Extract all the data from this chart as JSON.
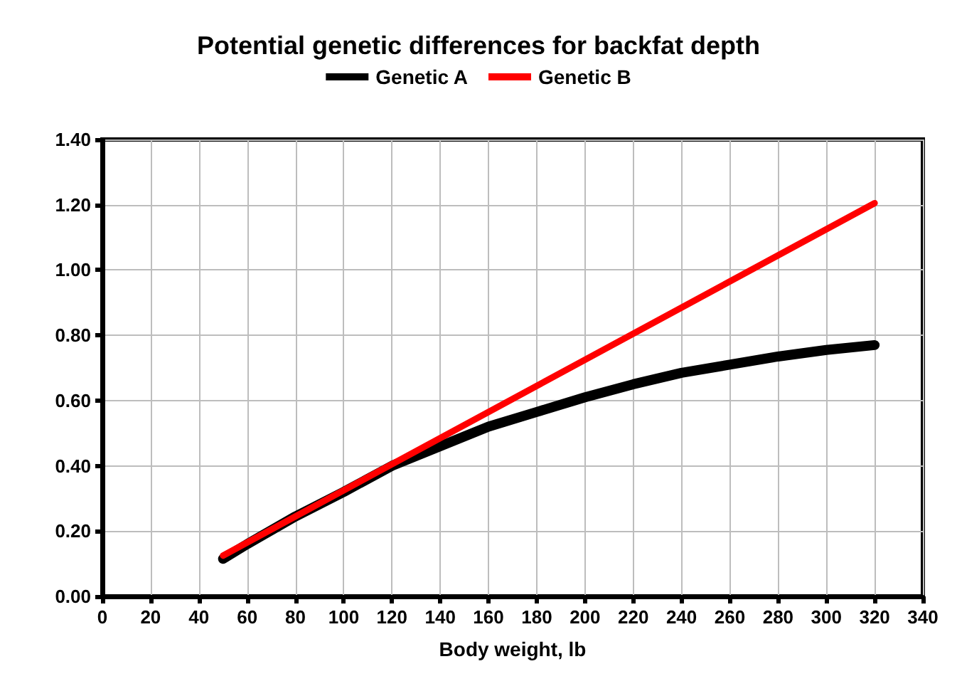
{
  "chart_data": {
    "type": "line",
    "title": "Potential genetic differences for backfat depth",
    "xlabel": "Body weight, lb",
    "series": [
      {
        "name": "Genetic A",
        "color": "#000000",
        "x": [
          50,
          60,
          80,
          100,
          120,
          140,
          160,
          180,
          200,
          220,
          240,
          260,
          280,
          300,
          320
        ],
        "values": [
          0.115,
          0.16,
          0.245,
          0.32,
          0.4,
          0.46,
          0.52,
          0.565,
          0.61,
          0.65,
          0.685,
          0.71,
          0.735,
          0.755,
          0.77
        ]
      },
      {
        "name": "Genetic B",
        "color": "#ff0000",
        "x": [
          50,
          320
        ],
        "values": [
          0.125,
          1.205
        ]
      }
    ],
    "xlim": [
      0,
      340
    ],
    "xticks": [
      0,
      20,
      40,
      60,
      80,
      100,
      120,
      140,
      160,
      180,
      200,
      220,
      240,
      260,
      280,
      300,
      320,
      340
    ],
    "ylim": [
      0,
      1.4
    ],
    "yticks": [
      {
        "value": 0,
        "label": "0.00"
      },
      {
        "value": 0.2,
        "label": "0.20"
      },
      {
        "value": 0.4,
        "label": "0.40"
      },
      {
        "value": 0.6,
        "label": "0.60"
      },
      {
        "value": 0.8,
        "label": "0.80"
      },
      {
        "value": 1.0,
        "label": "1.00"
      },
      {
        "value": 1.2,
        "label": "1.20"
      },
      {
        "value": 1.4,
        "label": "1.40"
      }
    ],
    "grid": true,
    "legend": "top",
    "marker": "none",
    "line_style": "solid"
  }
}
